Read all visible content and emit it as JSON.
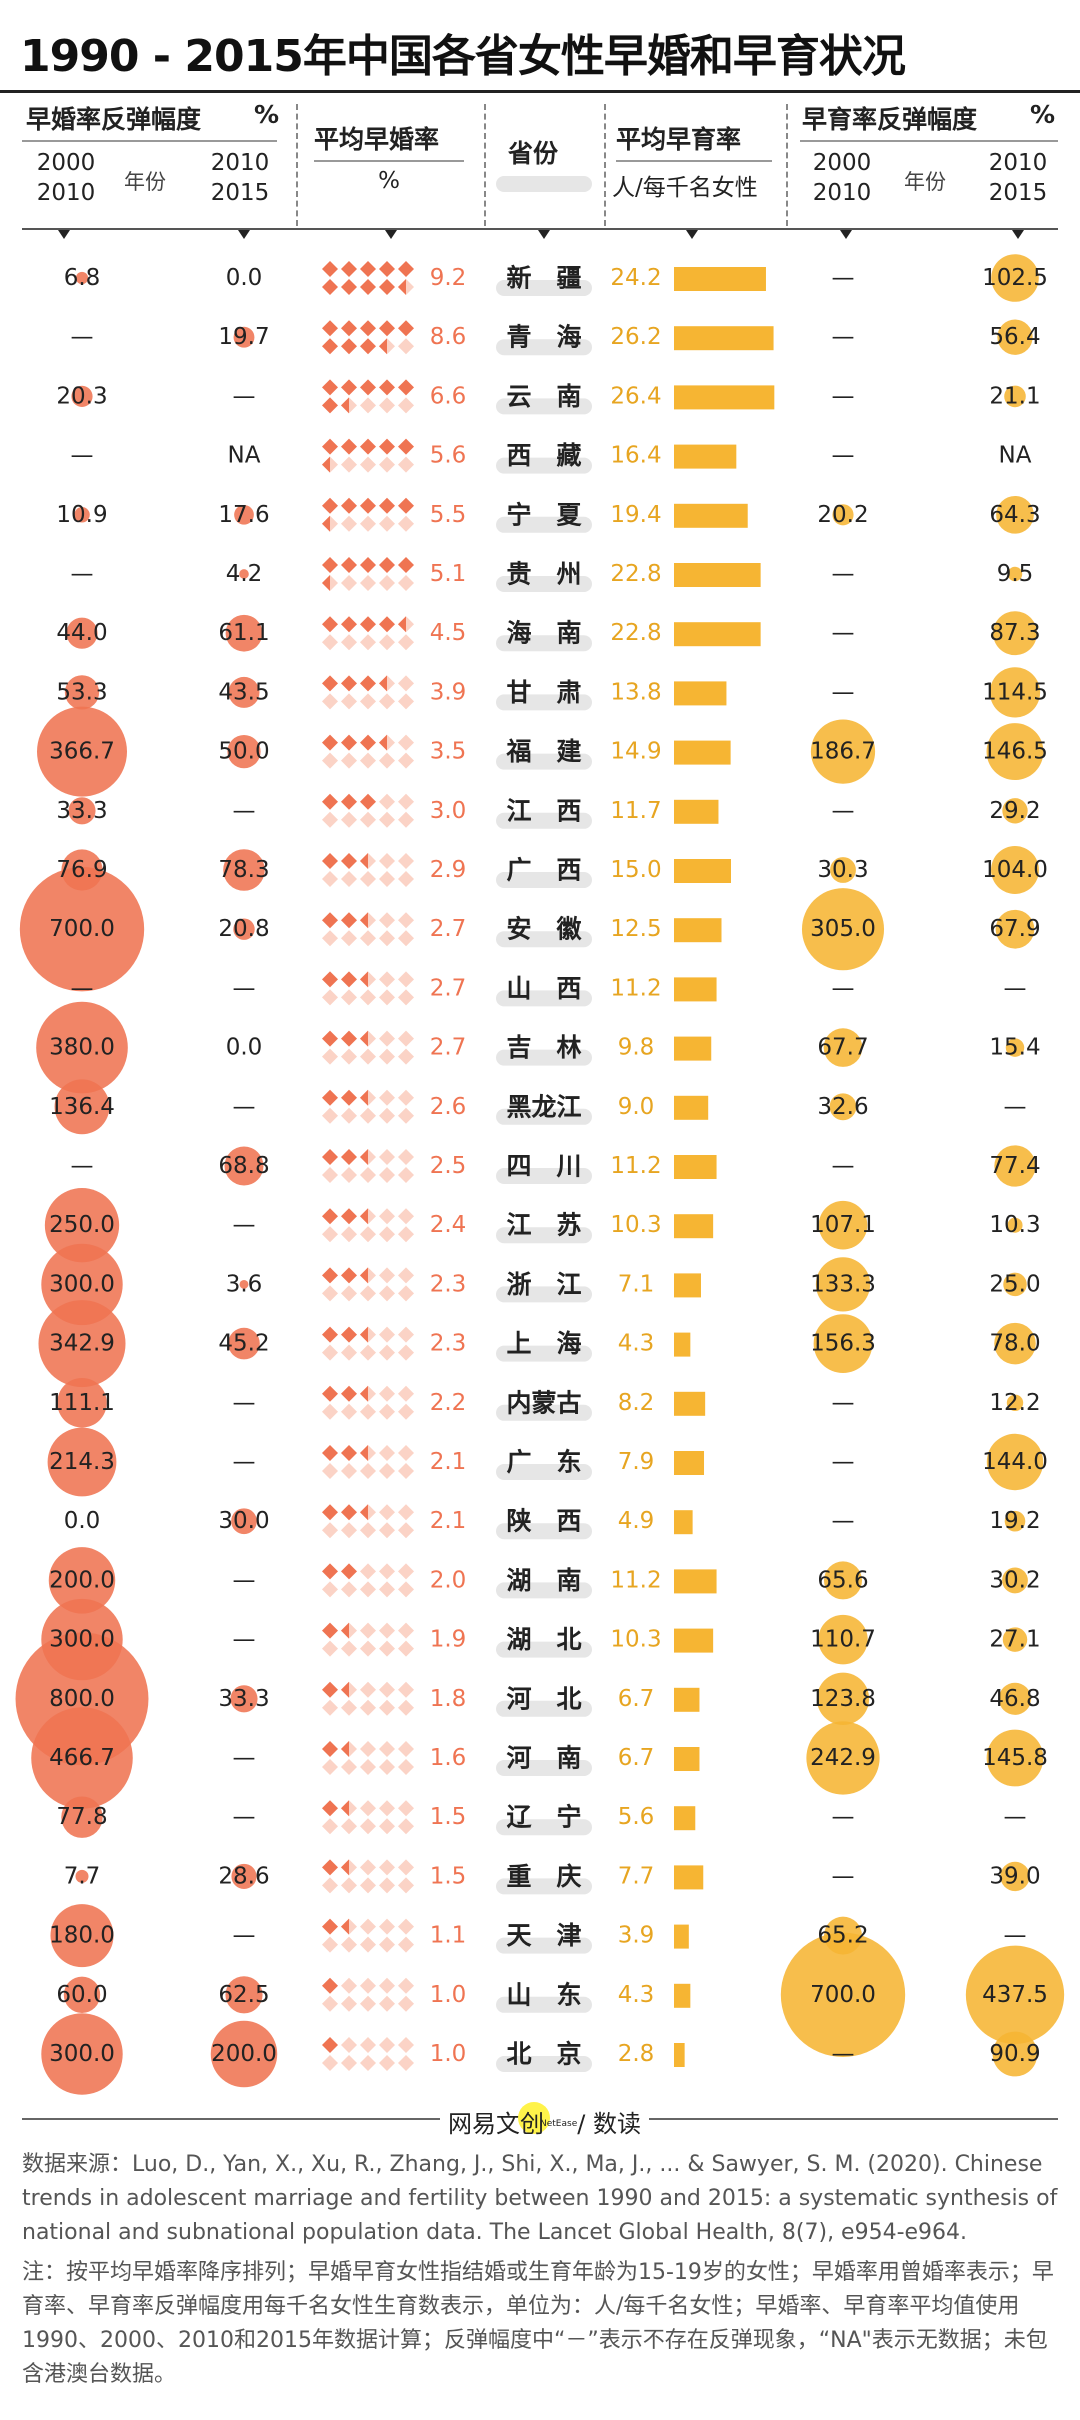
{
  "title": "1990 - 2015年中国各省女性早婚和早育状况",
  "headers": {
    "marriage_rebound": "早婚率反弹幅度",
    "marriage_rebound_unit": "%",
    "period1": "2000\n2010",
    "period2": "2010\n2015",
    "year_label": "年份",
    "avg_marriage": "平均早婚率",
    "avg_marriage_unit": "%",
    "province": "省份",
    "avg_birth": "平均早育率",
    "avg_birth_unit": "人/每千名女性",
    "birth_rebound": "早育率反弹幅度",
    "birth_rebound_unit": "%",
    "period3": "2000\n2010",
    "year_label2": "年份",
    "period4": "2010\n2015"
  },
  "colors": {
    "marriage": "#ef7452",
    "marriage_light": "#fbd3c6",
    "birth": "#f6b533",
    "text_birth": "#e7a521"
  },
  "chart_data": {
    "type": "table",
    "columns": [
      "早婚率反弹幅度 2000-2010",
      "早婚率反弹幅度 2010-2015",
      "平均早婚率",
      "省份",
      "平均早育率",
      "早育率反弹幅度 2000-2010",
      "早育率反弹幅度 2010-2015"
    ],
    "rows": [
      {
        "province": "新　疆",
        "mr1": "6.8",
        "mr2": "0.0",
        "avg_m": 9.2,
        "avg_m_label": "9.2",
        "avg_b": 24.2,
        "avg_b_label": "24.2",
        "br1": "—",
        "br2": "102.5"
      },
      {
        "province": "青　海",
        "mr1": "—",
        "mr2": "19.7",
        "avg_m": 8.6,
        "avg_m_label": "8.6",
        "avg_b": 26.2,
        "avg_b_label": "26.2",
        "br1": "—",
        "br2": "56.4"
      },
      {
        "province": "云　南",
        "mr1": "20.3",
        "mr2": "—",
        "avg_m": 6.6,
        "avg_m_label": "6.6",
        "avg_b": 26.4,
        "avg_b_label": "26.4",
        "br1": "—",
        "br2": "21.1"
      },
      {
        "province": "西　藏",
        "mr1": "—",
        "mr2": "NA",
        "avg_m": 5.6,
        "avg_m_label": "5.6",
        "avg_b": 16.4,
        "avg_b_label": "16.4",
        "br1": "—",
        "br2": "NA"
      },
      {
        "province": "宁　夏",
        "mr1": "10.9",
        "mr2": "17.6",
        "avg_m": 5.5,
        "avg_m_label": "5.5",
        "avg_b": 19.4,
        "avg_b_label": "19.4",
        "br1": "20.2",
        "br2": "64.3"
      },
      {
        "province": "贵　州",
        "mr1": "—",
        "mr2": "4.2",
        "avg_m": 5.1,
        "avg_m_label": "5.1",
        "avg_b": 22.8,
        "avg_b_label": "22.8",
        "br1": "—",
        "br2": "9.5"
      },
      {
        "province": "海　南",
        "mr1": "44.0",
        "mr2": "61.1",
        "avg_m": 4.5,
        "avg_m_label": "4.5",
        "avg_b": 22.8,
        "avg_b_label": "22.8",
        "br1": "—",
        "br2": "87.3"
      },
      {
        "province": "甘　肃",
        "mr1": "53.3",
        "mr2": "43.5",
        "avg_m": 3.9,
        "avg_m_label": "3.9",
        "avg_b": 13.8,
        "avg_b_label": "13.8",
        "br1": "—",
        "br2": "114.5"
      },
      {
        "province": "福　建",
        "mr1": "366.7",
        "mr2": "50.0",
        "avg_m": 3.5,
        "avg_m_label": "3.5",
        "avg_b": 14.9,
        "avg_b_label": "14.9",
        "br1": "186.7",
        "br2": "146.5"
      },
      {
        "province": "江　西",
        "mr1": "33.3",
        "mr2": "—",
        "avg_m": 3.0,
        "avg_m_label": "3.0",
        "avg_b": 11.7,
        "avg_b_label": "11.7",
        "br1": "—",
        "br2": "29.2"
      },
      {
        "province": "广　西",
        "mr1": "76.9",
        "mr2": "78.3",
        "avg_m": 2.9,
        "avg_m_label": "2.9",
        "avg_b": 15.0,
        "avg_b_label": "15.0",
        "br1": "30.3",
        "br2": "104.0"
      },
      {
        "province": "安　徽",
        "mr1": "700.0",
        "mr2": "20.8",
        "avg_m": 2.7,
        "avg_m_label": "2.7",
        "avg_b": 12.5,
        "avg_b_label": "12.5",
        "br1": "305.0",
        "br2": "67.9"
      },
      {
        "province": "山　西",
        "mr1": "—",
        "mr2": "—",
        "avg_m": 2.7,
        "avg_m_label": "2.7",
        "avg_b": 11.2,
        "avg_b_label": "11.2",
        "br1": "—",
        "br2": "—"
      },
      {
        "province": "吉　林",
        "mr1": "380.0",
        "mr2": "0.0",
        "avg_m": 2.7,
        "avg_m_label": "2.7",
        "avg_b": 9.8,
        "avg_b_label": "9.8",
        "br1": "67.7",
        "br2": "15.4"
      },
      {
        "province": "黑龙江",
        "mr1": "136.4",
        "mr2": "—",
        "avg_m": 2.6,
        "avg_m_label": "2.6",
        "avg_b": 9.0,
        "avg_b_label": "9.0",
        "br1": "32.6",
        "br2": "—"
      },
      {
        "province": "四　川",
        "mr1": "—",
        "mr2": "68.8",
        "avg_m": 2.5,
        "avg_m_label": "2.5",
        "avg_b": 11.2,
        "avg_b_label": "11.2",
        "br1": "—",
        "br2": "77.4"
      },
      {
        "province": "江　苏",
        "mr1": "250.0",
        "mr2": "—",
        "avg_m": 2.4,
        "avg_m_label": "2.4",
        "avg_b": 10.3,
        "avg_b_label": "10.3",
        "br1": "107.1",
        "br2": "10.3"
      },
      {
        "province": "浙　江",
        "mr1": "300.0",
        "mr2": "3.6",
        "avg_m": 2.3,
        "avg_m_label": "2.3",
        "avg_b": 7.1,
        "avg_b_label": "7.1",
        "br1": "133.3",
        "br2": "25.0"
      },
      {
        "province": "上　海",
        "mr1": "342.9",
        "mr2": "45.2",
        "avg_m": 2.3,
        "avg_m_label": "2.3",
        "avg_b": 4.3,
        "avg_b_label": "4.3",
        "br1": "156.3",
        "br2": "78.0"
      },
      {
        "province": "内蒙古",
        "mr1": "111.1",
        "mr2": "—",
        "avg_m": 2.2,
        "avg_m_label": "2.2",
        "avg_b": 8.2,
        "avg_b_label": "8.2",
        "br1": "—",
        "br2": "12.2"
      },
      {
        "province": "广　东",
        "mr1": "214.3",
        "mr2": "—",
        "avg_m": 2.1,
        "avg_m_label": "2.1",
        "avg_b": 7.9,
        "avg_b_label": "7.9",
        "br1": "—",
        "br2": "144.0"
      },
      {
        "province": "陕　西",
        "mr1": "0.0",
        "mr2": "30.0",
        "avg_m": 2.1,
        "avg_m_label": "2.1",
        "avg_b": 4.9,
        "avg_b_label": "4.9",
        "br1": "—",
        "br2": "19.2"
      },
      {
        "province": "湖　南",
        "mr1": "200.0",
        "mr2": "—",
        "avg_m": 2.0,
        "avg_m_label": "2.0",
        "avg_b": 11.2,
        "avg_b_label": "11.2",
        "br1": "65.6",
        "br2": "30.2"
      },
      {
        "province": "湖　北",
        "mr1": "300.0",
        "mr2": "—",
        "avg_m": 1.9,
        "avg_m_label": "1.9",
        "avg_b": 10.3,
        "avg_b_label": "10.3",
        "br1": "110.7",
        "br2": "27.1"
      },
      {
        "province": "河　北",
        "mr1": "800.0",
        "mr2": "33.3",
        "avg_m": 1.8,
        "avg_m_label": "1.8",
        "avg_b": 6.7,
        "avg_b_label": "6.7",
        "br1": "123.8",
        "br2": "46.8"
      },
      {
        "province": "河　南",
        "mr1": "466.7",
        "mr2": "—",
        "avg_m": 1.6,
        "avg_m_label": "1.6",
        "avg_b": 6.7,
        "avg_b_label": "6.7",
        "br1": "242.9",
        "br2": "145.8"
      },
      {
        "province": "辽　宁",
        "mr1": "77.8",
        "mr2": "—",
        "avg_m": 1.5,
        "avg_m_label": "1.5",
        "avg_b": 5.6,
        "avg_b_label": "5.6",
        "br1": "—",
        "br2": "—"
      },
      {
        "province": "重　庆",
        "mr1": "7.7",
        "mr2": "28.6",
        "avg_m": 1.5,
        "avg_m_label": "1.5",
        "avg_b": 7.7,
        "avg_b_label": "7.7",
        "br1": "—",
        "br2": "39.0"
      },
      {
        "province": "天　津",
        "mr1": "180.0",
        "mr2": "—",
        "avg_m": 1.1,
        "avg_m_label": "1.1",
        "avg_b": 3.9,
        "avg_b_label": "3.9",
        "br1": "65.2",
        "br2": "—"
      },
      {
        "province": "山　东",
        "mr1": "60.0",
        "mr2": "62.5",
        "avg_m": 1.0,
        "avg_m_label": "1.0",
        "avg_b": 4.3,
        "avg_b_label": "4.3",
        "br1": "700.0",
        "br2": "437.5"
      },
      {
        "province": "北　京",
        "mr1": "300.0",
        "mr2": "200.0",
        "avg_m": 1.0,
        "avg_m_label": "1.0",
        "avg_b": 2.8,
        "avg_b_label": "2.8",
        "br1": "—",
        "br2": "90.9"
      }
    ]
  },
  "footer": {
    "logo_left": "网易文",
    "logo_mid": "创",
    "logo_brand": "NetEase",
    "logo_right": "/ 数读"
  },
  "source": "数据来源：Luo, D., Yan, X., Xu, R., Zhang, J., Shi, X., Ma, J., ... & Sawyer, S. M. (2020). Chinese trends in adolescent marriage and fertility between 1990 and 2015: a systematic synthesis of national and subnational population data. The Lancet Global Health, 8(7), e954-e964.",
  "note": "注：按平均早婚率降序排列；早婚早育女性指结婚或生育年龄为15-19岁的女性；早婚率用曾婚率表示；早育率、早育率反弹幅度用每千名女性生育数表示，单位为：人/每千名女性；早婚率、早育率平均值使用1990、2000、2010和2015年数据计算；反弹幅度中“－”表示不存在反弹现象，“NA\"表示无数据；未包含港澳台数据。"
}
